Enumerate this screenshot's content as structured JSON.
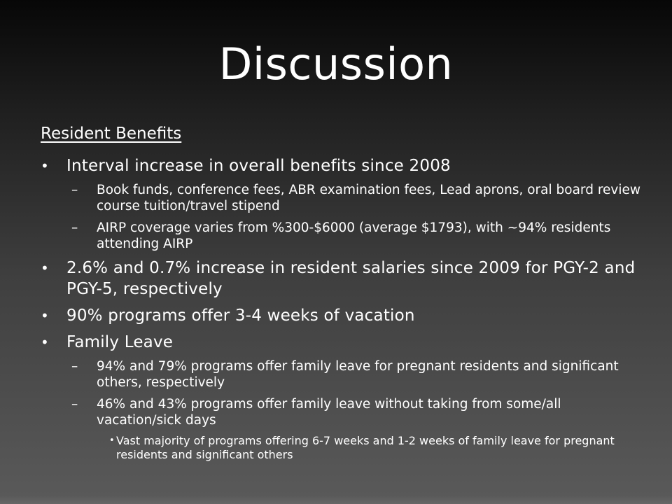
{
  "slide": {
    "title": "Discussion",
    "subtitle": "Resident Benefits",
    "bullets": [
      {
        "text": "Interval increase in overall benefits since 2008",
        "children": [
          {
            "text": "Book funds, conference fees, ABR examination fees, Lead aprons, oral board review course tuition/travel stipend"
          },
          {
            "text": "AIRP coverage varies from %300-$6000 (average $1793), with ~94% residents attending AIRP"
          }
        ]
      },
      {
        "text": "2.6% and 0.7% increase in resident salaries since 2009 for PGY-2 and PGY-5, respectively"
      },
      {
        "text": "90% programs offer 3-4 weeks of vacation"
      },
      {
        "text": "Family Leave",
        "children": [
          {
            "text": "94% and 79% programs offer family leave for pregnant residents and significant others, respectively"
          },
          {
            "text": "46% and 43% programs offer family leave without taking from some/all vacation/sick days",
            "children": [
              {
                "text": "Vast majority of programs offering 6-7 weeks and 1-2 weeks of family leave for pregnant residents and significant others"
              }
            ]
          }
        ]
      }
    ]
  }
}
